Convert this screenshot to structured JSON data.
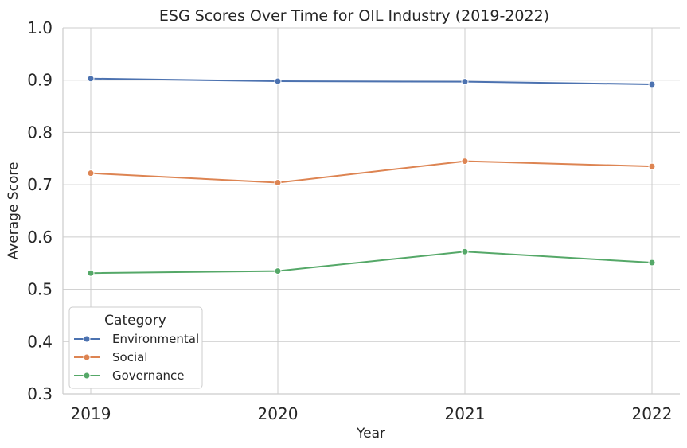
{
  "chart_data": {
    "type": "line",
    "title": "ESG Scores Over Time for OIL Industry (2019-2022)",
    "xlabel": "Year",
    "ylabel": "Average Score",
    "x": [
      "2019",
      "2020",
      "2021",
      "2022"
    ],
    "ylim": [
      0.3,
      1.0
    ],
    "yticks": [
      "0.3",
      "0.4",
      "0.5",
      "0.6",
      "0.7",
      "0.8",
      "0.9",
      "1.0"
    ],
    "grid": true,
    "legend": {
      "title": "Category",
      "placement": "lower-left"
    },
    "series": [
      {
        "name": "Environmental",
        "color": "#4c72b0",
        "values": [
          0.903,
          0.898,
          0.897,
          0.892
        ]
      },
      {
        "name": "Social",
        "color": "#dd8452",
        "values": [
          0.722,
          0.704,
          0.745,
          0.735
        ]
      },
      {
        "name": "Governance",
        "color": "#55a868",
        "values": [
          0.531,
          0.535,
          0.572,
          0.551
        ]
      }
    ]
  }
}
